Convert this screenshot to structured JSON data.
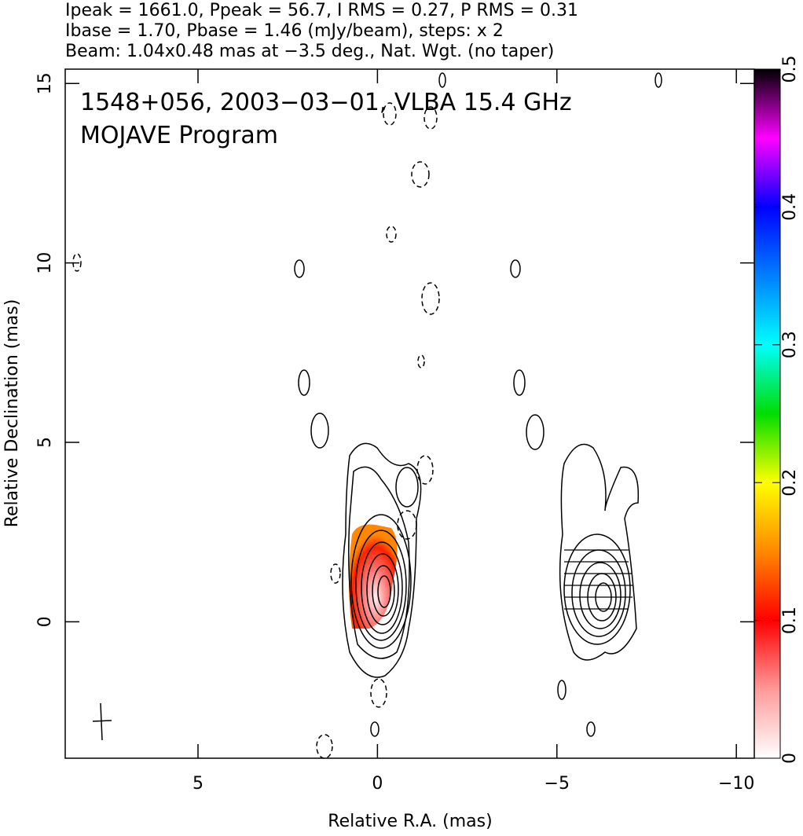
{
  "chart_data": {
    "type": "contour",
    "header": [
      "Ipeak = 1661.0, Ppeak = 56.7, I RMS = 0.27, P RMS = 0.31",
      "Ibase = 1.70, Pbase = 1.46 (mJy/beam), steps: x 2",
      "Beam: 1.04x0.48 mas at −3.5 deg., Nat. Wgt. (no taper)"
    ],
    "annotations": [
      "1548+056, 2003−03−01, VLBA 15.4 GHz",
      "MOJAVE Program"
    ],
    "xlabel": "Relative R.A. (mas)",
    "ylabel": "Relative Declination (mas)",
    "xlim": [
      8.7,
      -10.5
    ],
    "xticks": [
      5,
      0,
      {
        "value": -5,
        "label": "−5"
      },
      {
        "value": -10,
        "label": "−10"
      }
    ],
    "ylim": [
      -3.8,
      15.4
    ],
    "yticks": [
      0,
      5,
      10,
      15
    ],
    "clim": [
      0,
      0.5
    ],
    "cticks": [
      0,
      0.1,
      0.2,
      0.3,
      0.4,
      0.5
    ]
  }
}
